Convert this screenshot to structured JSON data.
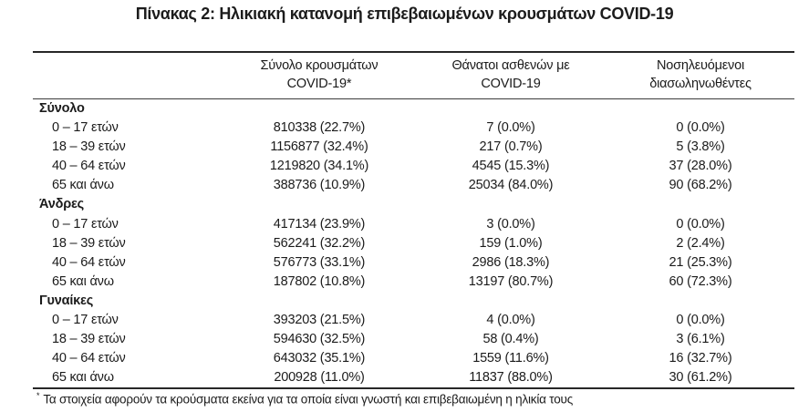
{
  "title": "Πίνακας 2: Ηλικιακή κατανομή επιβεβαιωμένων κρουσμάτων COVID-19",
  "table": {
    "col_headers": [
      {
        "line1": "Σύνολο κρουσμάτων",
        "line2": "COVID-19*"
      },
      {
        "line1": "Θάνατοι ασθενών με",
        "line2": "COVID-19"
      },
      {
        "line1": "Νοσηλευόμενοι",
        "line2": "διασωληνωθέντες"
      }
    ],
    "sections": [
      {
        "label": "Σύνολο",
        "rows": [
          {
            "age": "0 – 17 ετών",
            "cases": "810338 (22.7%)",
            "deaths": "7 (0.0%)",
            "intubated": "0 (0.0%)"
          },
          {
            "age": "18 – 39 ετών",
            "cases": "1156877 (32.4%)",
            "deaths": "217 (0.7%)",
            "intubated": "5 (3.8%)"
          },
          {
            "age": "40 – 64 ετών",
            "cases": "1219820 (34.1%)",
            "deaths": "4545 (15.3%)",
            "intubated": "37 (28.0%)"
          },
          {
            "age": "65 και άνω",
            "cases": "388736 (10.9%)",
            "deaths": "25034 (84.0%)",
            "intubated": "90 (68.2%)"
          }
        ]
      },
      {
        "label": "Άνδρες",
        "rows": [
          {
            "age": "0 – 17 ετών",
            "cases": "417134 (23.9%)",
            "deaths": "3 (0.0%)",
            "intubated": "0 (0.0%)"
          },
          {
            "age": "18 – 39 ετών",
            "cases": "562241 (32.2%)",
            "deaths": "159 (1.0%)",
            "intubated": "2 (2.4%)"
          },
          {
            "age": "40 – 64 ετών",
            "cases": "576773 (33.1%)",
            "deaths": "2986 (18.3%)",
            "intubated": "21 (25.3%)"
          },
          {
            "age": "65 και άνω",
            "cases": "187802 (10.8%)",
            "deaths": "13197 (80.7%)",
            "intubated": "60 (72.3%)"
          }
        ]
      },
      {
        "label": "Γυναίκες",
        "rows": [
          {
            "age": "0 – 17 ετών",
            "cases": "393203 (21.5%)",
            "deaths": "4 (0.0%)",
            "intubated": "0 (0.0%)"
          },
          {
            "age": "18 – 39 ετών",
            "cases": "594630 (32.5%)",
            "deaths": "58 (0.4%)",
            "intubated": "3 (6.1%)"
          },
          {
            "age": "40 – 64 ετών",
            "cases": "643032 (35.1%)",
            "deaths": "1559 (11.6%)",
            "intubated": "16 (32.7%)"
          },
          {
            "age": "65 και άνω",
            "cases": "200928 (11.0%)",
            "deaths": "11837 (88.0%)",
            "intubated": "30 (61.2%)"
          }
        ]
      }
    ],
    "footnote_marker": "*",
    "footnote": "Τα στοιχεία αφορούν τα κρούσματα εκείνα για τα οποία είναι γνωστή και επιβεβαιωμένη η ηλικία τους"
  }
}
